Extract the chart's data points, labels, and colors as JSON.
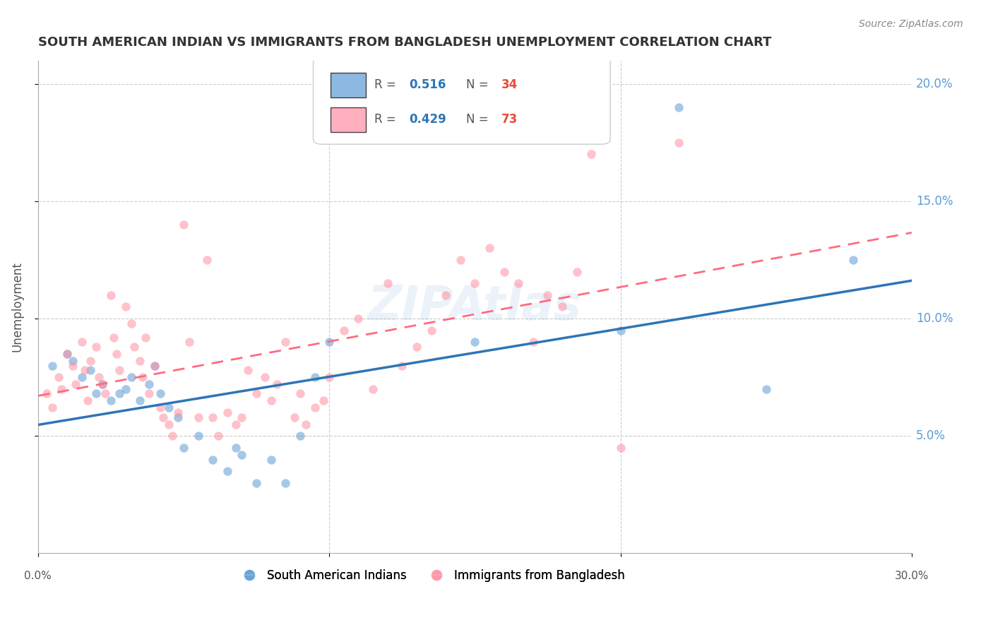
{
  "title": "SOUTH AMERICAN INDIAN VS IMMIGRANTS FROM BANGLADESH UNEMPLOYMENT CORRELATION CHART",
  "source": "Source: ZipAtlas.com",
  "ylabel": "Unemployment",
  "ytick_labels": [
    "20.0%",
    "15.0%",
    "10.0%",
    "5.0%"
  ],
  "ytick_values": [
    0.2,
    0.15,
    0.1,
    0.05
  ],
  "xlim": [
    0.0,
    0.3
  ],
  "ylim": [
    0.0,
    0.21
  ],
  "watermark": "ZIPAtlas",
  "legend_blue_r": "0.516",
  "legend_blue_n": "34",
  "legend_pink_r": "0.429",
  "legend_pink_n": "73",
  "blue_color": "#5B9BD5",
  "pink_color": "#FF8EA1",
  "blue_line_color": "#2E75B6",
  "pink_line_color": "#FF6B80",
  "axis_label_color": "#5B9BD5",
  "n_color": "#e74c3c",
  "text_color": "#555555",
  "blue_scatter": [
    [
      0.005,
      0.08
    ],
    [
      0.01,
      0.085
    ],
    [
      0.012,
      0.082
    ],
    [
      0.015,
      0.075
    ],
    [
      0.018,
      0.078
    ],
    [
      0.02,
      0.068
    ],
    [
      0.022,
      0.072
    ],
    [
      0.025,
      0.065
    ],
    [
      0.028,
      0.068
    ],
    [
      0.03,
      0.07
    ],
    [
      0.032,
      0.075
    ],
    [
      0.035,
      0.065
    ],
    [
      0.038,
      0.072
    ],
    [
      0.04,
      0.08
    ],
    [
      0.042,
      0.068
    ],
    [
      0.045,
      0.062
    ],
    [
      0.048,
      0.058
    ],
    [
      0.05,
      0.045
    ],
    [
      0.055,
      0.05
    ],
    [
      0.06,
      0.04
    ],
    [
      0.065,
      0.035
    ],
    [
      0.068,
      0.045
    ],
    [
      0.07,
      0.042
    ],
    [
      0.075,
      0.03
    ],
    [
      0.08,
      0.04
    ],
    [
      0.085,
      0.03
    ],
    [
      0.09,
      0.05
    ],
    [
      0.095,
      0.075
    ],
    [
      0.1,
      0.09
    ],
    [
      0.15,
      0.09
    ],
    [
      0.2,
      0.095
    ],
    [
      0.22,
      0.19
    ],
    [
      0.25,
      0.07
    ],
    [
      0.28,
      0.125
    ]
  ],
  "pink_scatter": [
    [
      0.003,
      0.068
    ],
    [
      0.005,
      0.062
    ],
    [
      0.007,
      0.075
    ],
    [
      0.008,
      0.07
    ],
    [
      0.01,
      0.085
    ],
    [
      0.012,
      0.08
    ],
    [
      0.013,
      0.072
    ],
    [
      0.015,
      0.09
    ],
    [
      0.016,
      0.078
    ],
    [
      0.017,
      0.065
    ],
    [
      0.018,
      0.082
    ],
    [
      0.02,
      0.088
    ],
    [
      0.021,
      0.075
    ],
    [
      0.022,
      0.072
    ],
    [
      0.023,
      0.068
    ],
    [
      0.025,
      0.11
    ],
    [
      0.026,
      0.092
    ],
    [
      0.027,
      0.085
    ],
    [
      0.028,
      0.078
    ],
    [
      0.03,
      0.105
    ],
    [
      0.032,
      0.098
    ],
    [
      0.033,
      0.088
    ],
    [
      0.035,
      0.082
    ],
    [
      0.036,
      0.075
    ],
    [
      0.037,
      0.092
    ],
    [
      0.038,
      0.068
    ],
    [
      0.04,
      0.08
    ],
    [
      0.042,
      0.062
    ],
    [
      0.043,
      0.058
    ],
    [
      0.045,
      0.055
    ],
    [
      0.046,
      0.05
    ],
    [
      0.048,
      0.06
    ],
    [
      0.05,
      0.14
    ],
    [
      0.052,
      0.09
    ],
    [
      0.055,
      0.058
    ],
    [
      0.058,
      0.125
    ],
    [
      0.06,
      0.058
    ],
    [
      0.062,
      0.05
    ],
    [
      0.065,
      0.06
    ],
    [
      0.068,
      0.055
    ],
    [
      0.07,
      0.058
    ],
    [
      0.072,
      0.078
    ],
    [
      0.075,
      0.068
    ],
    [
      0.078,
      0.075
    ],
    [
      0.08,
      0.065
    ],
    [
      0.082,
      0.072
    ],
    [
      0.085,
      0.09
    ],
    [
      0.088,
      0.058
    ],
    [
      0.09,
      0.068
    ],
    [
      0.092,
      0.055
    ],
    [
      0.095,
      0.062
    ],
    [
      0.098,
      0.065
    ],
    [
      0.1,
      0.075
    ],
    [
      0.105,
      0.095
    ],
    [
      0.11,
      0.1
    ],
    [
      0.115,
      0.07
    ],
    [
      0.12,
      0.115
    ],
    [
      0.125,
      0.08
    ],
    [
      0.13,
      0.088
    ],
    [
      0.135,
      0.095
    ],
    [
      0.14,
      0.11
    ],
    [
      0.145,
      0.125
    ],
    [
      0.15,
      0.115
    ],
    [
      0.155,
      0.13
    ],
    [
      0.16,
      0.12
    ],
    [
      0.165,
      0.115
    ],
    [
      0.17,
      0.09
    ],
    [
      0.175,
      0.11
    ],
    [
      0.18,
      0.105
    ],
    [
      0.185,
      0.12
    ],
    [
      0.19,
      0.17
    ],
    [
      0.2,
      0.045
    ],
    [
      0.22,
      0.175
    ]
  ]
}
